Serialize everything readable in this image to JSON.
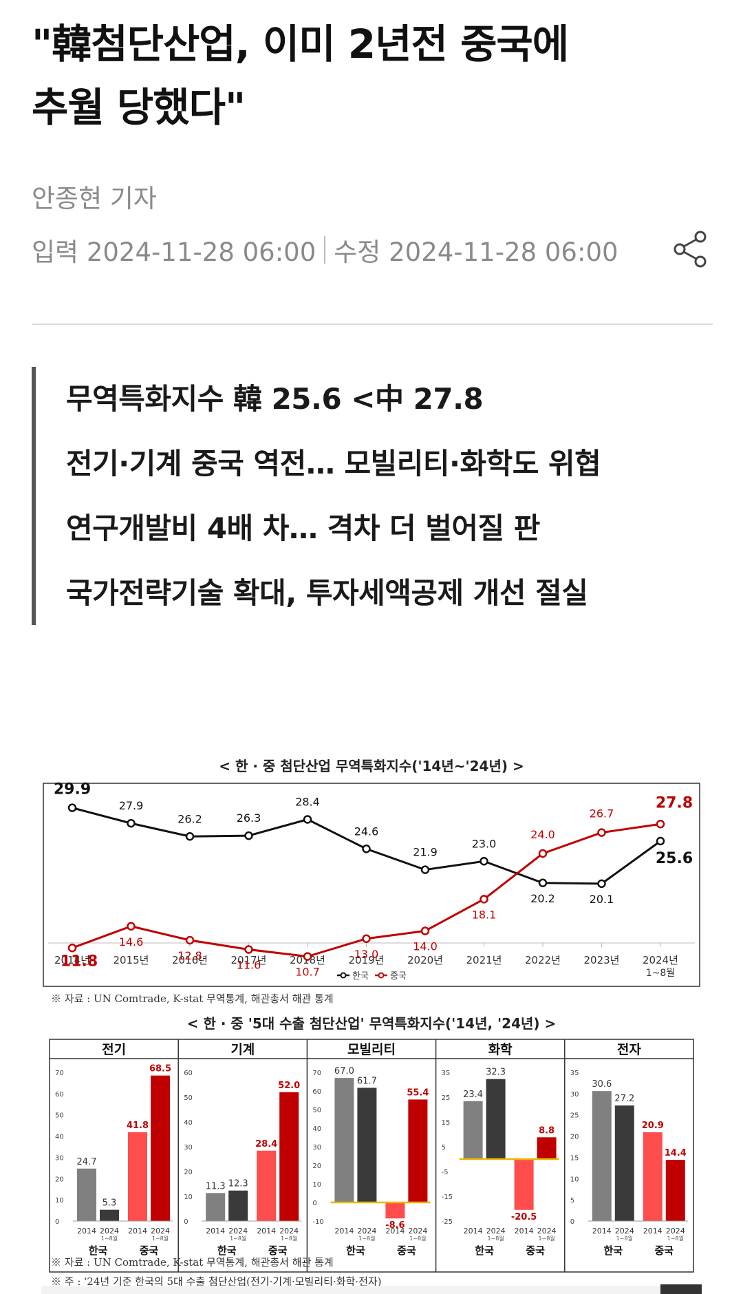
{
  "article": {
    "headline_line1": "\"韓첨단산업, 이미 2년전 중국에",
    "headline_line2": "추월 당했다\"",
    "author": "안종현 기자",
    "input_label": "입력 2024-11-28 06:00",
    "modified_label": "수정 2024-11-28 06:00",
    "share_icon": "share-icon"
  },
  "summary": [
    "무역특화지수 韓 25.6 <中 27.8",
    "전기·기계 중국 역전… 모빌리티·화학도 위협",
    "연구개발비 4배 차… 격차 더 벌어질 판",
    "국가전략기술 확대, 투자세액공제 개선 절실"
  ],
  "colors": {
    "korea": "#111111",
    "china": "#c00000",
    "china_light": "#ff4d4d",
    "korea_light": "#808080",
    "korea_dark": "#3a3a3a",
    "china_dark": "#c00000",
    "zero_line": "#e8b800"
  },
  "chart_data": [
    {
      "type": "line",
      "title": "< 한 · 중 첨단산업 무역특화지수('14년~'24년) >",
      "x": [
        "2014년",
        "2015년",
        "2016년",
        "2017년",
        "2018년",
        "2019년",
        "2020년",
        "2021년",
        "2022년",
        "2023년",
        "2024년"
      ],
      "x_last_sub": "1~8월",
      "series": [
        {
          "name": "한국",
          "values": [
            29.9,
            27.9,
            26.2,
            26.3,
            28.4,
            24.6,
            21.9,
            23.0,
            20.2,
            20.1,
            25.6
          ]
        },
        {
          "name": "중국",
          "values": [
            11.8,
            14.6,
            12.8,
            11.6,
            10.7,
            13.0,
            14.0,
            18.1,
            24.0,
            26.7,
            27.8
          ]
        }
      ],
      "labels_korea": [
        "29.9",
        "27.9",
        "26.2",
        "26.3",
        "28.4",
        "24.6",
        "21.9",
        "23.0",
        "20.2",
        "20.1",
        "25.6"
      ],
      "labels_china": [
        "11.8",
        "14.6",
        "12.8",
        "11.6",
        "10.7",
        "13.0",
        "14.0",
        "18.1",
        "24.0",
        "26.7",
        "27.8"
      ],
      "ylim": [
        8,
        32
      ],
      "source": "※ 자료 : UN Comtrade, K-stat 무역통계, 해관총서 해관 통계"
    },
    {
      "type": "bar",
      "title": "< 한 · 중 '5대 수출 첨단산업' 무역특화지수('14년, '24년) >",
      "bar_categories": [
        "2014",
        "2024",
        "2014",
        "2024"
      ],
      "bar_sub": "1~8월",
      "groups": [
        "한국",
        "중국"
      ],
      "panels": [
        {
          "name": "전기",
          "ylim": [
            0,
            70
          ],
          "ticks": [
            "0",
            "10",
            "20",
            "30",
            "40",
            "50",
            "60",
            "70"
          ],
          "values": [
            24.7,
            5.3,
            41.8,
            68.5
          ],
          "labels": [
            "24.7",
            "5.3",
            "41.8",
            "68.5"
          ]
        },
        {
          "name": "기계",
          "ylim": [
            0,
            60
          ],
          "ticks": [
            "0",
            "10",
            "20",
            "30",
            "40",
            "50",
            "60"
          ],
          "values": [
            11.3,
            12.3,
            28.4,
            52.0
          ],
          "labels": [
            "11.3",
            "12.3",
            "28.4",
            "52.0"
          ]
        },
        {
          "name": "모빌리티",
          "ylim": [
            -10,
            70
          ],
          "ticks": [
            "-10",
            "0",
            "10",
            "20",
            "30",
            "40",
            "50",
            "60",
            "70"
          ],
          "values": [
            67.0,
            61.7,
            -8.6,
            55.4
          ],
          "labels": [
            "67.0",
            "61.7",
            "-8.6",
            "55.4"
          ]
        },
        {
          "name": "화학",
          "ylim": [
            -25,
            35
          ],
          "ticks": [
            "-25",
            "-15",
            "-5",
            "5",
            "15",
            "25",
            "35"
          ],
          "values": [
            23.4,
            32.3,
            -20.5,
            8.8
          ],
          "labels": [
            "23.4",
            "32.3",
            "-20.5",
            "8.8"
          ]
        },
        {
          "name": "전자",
          "ylim": [
            0,
            35
          ],
          "ticks": [
            "0",
            "5",
            "10",
            "15",
            "20",
            "25",
            "30",
            "35"
          ],
          "values": [
            30.6,
            27.2,
            20.9,
            14.4
          ],
          "labels": [
            "30.6",
            "27.2",
            "20.9",
            "14.4"
          ]
        }
      ],
      "note": "※ 주 : '24년 기준 한국의 5대 수출 첨단산업(전기·기계·모빌리티·화학·전자)",
      "source": "※ 자료 : UN Comtrade, K-stat 무역통계, 해관총서 해관 통계"
    }
  ]
}
